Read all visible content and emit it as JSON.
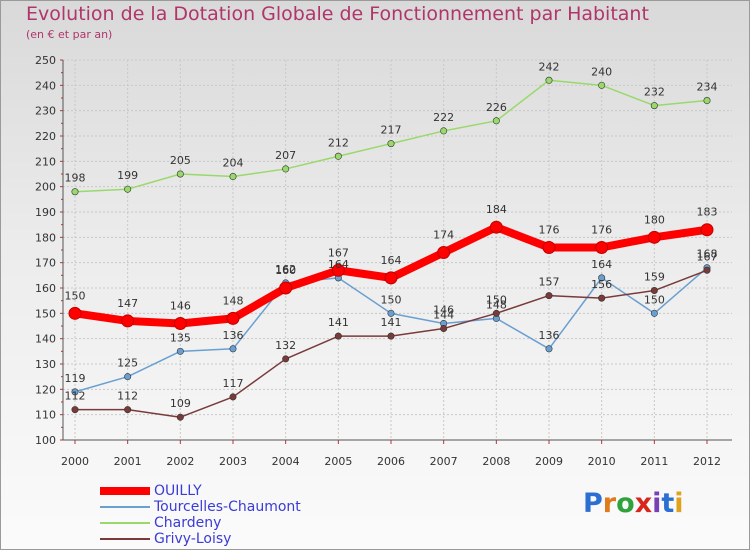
{
  "title": "Evolution de la Dotation Globale de Fonctionnement par Habitant",
  "subtitle": "(en € et par an)",
  "logo": {
    "text": "Proxiti",
    "letters": [
      "P",
      "r",
      "o",
      "x",
      "i",
      "t",
      "i"
    ],
    "colors": [
      "#2a6fd1",
      "#e07a1b",
      "#2fa33a",
      "#d9261c",
      "#7a3fb5",
      "#2a6fd1",
      "#e0a21b"
    ]
  },
  "chart_data": {
    "type": "line",
    "x": [
      "2000",
      "2001",
      "2002",
      "2003",
      "2004",
      "2005",
      "2006",
      "2007",
      "2008",
      "2009",
      "2010",
      "2011",
      "2012"
    ],
    "ylim": [
      100,
      250
    ],
    "yticks": [
      100,
      110,
      120,
      130,
      140,
      150,
      160,
      170,
      180,
      190,
      200,
      210,
      220,
      230,
      240,
      250
    ],
    "grid": true,
    "legend_position": "bottom-left",
    "series": [
      {
        "name": "Chardeny",
        "color": "#99d96b",
        "values": [
          198,
          199,
          205,
          204,
          207,
          212,
          217,
          222,
          226,
          242,
          240,
          232,
          234
        ]
      },
      {
        "name": "Tourcelles-Chaumont",
        "color": "#6a9fd1",
        "values": [
          119,
          125,
          135,
          136,
          162,
          164,
          150,
          146,
          148,
          136,
          164,
          150,
          168
        ]
      },
      {
        "name": "Grivy-Loisy",
        "color": "#7a3a3a",
        "values": [
          112,
          112,
          109,
          117,
          132,
          141,
          141,
          144,
          150,
          157,
          156,
          159,
          167
        ]
      },
      {
        "name": "OUILLY",
        "color": "#ff0000",
        "values": [
          150,
          147,
          146,
          148,
          160,
          167,
          164,
          174,
          184,
          176,
          176,
          180,
          183
        ]
      }
    ]
  },
  "legend": [
    {
      "label": "OUILLY",
      "color": "#ff0000",
      "width": 8
    },
    {
      "label": "Tourcelles-Chaumont",
      "color": "#6a9fd1",
      "width": 2
    },
    {
      "label": "Chardeny",
      "color": "#99d96b",
      "width": 2
    },
    {
      "label": "Grivy-Loisy",
      "color": "#7a3a3a",
      "width": 2
    }
  ]
}
